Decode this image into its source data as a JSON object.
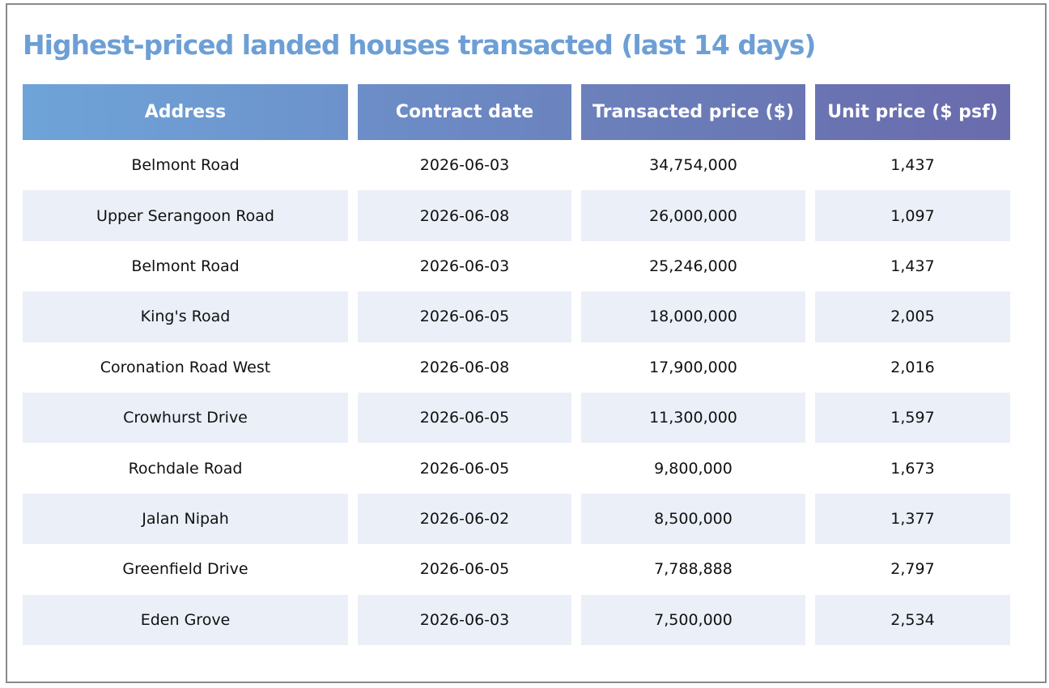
{
  "title": "Highest-priced landed houses transacted (last 14 days)",
  "table": {
    "headers": [
      "Address",
      "Contract date",
      "Transacted price ($)",
      "Unit price ($ psf)"
    ],
    "rows": [
      [
        "Belmont Road",
        "2026-06-03",
        "34,754,000",
        "1,437"
      ],
      [
        "Upper Serangoon Road",
        "2026-06-08",
        "26,000,000",
        "1,097"
      ],
      [
        "Belmont Road",
        "2026-06-03",
        "25,246,000",
        "1,437"
      ],
      [
        "King's Road",
        "2026-06-05",
        "18,000,000",
        "2,005"
      ],
      [
        "Coronation Road West",
        "2026-06-08",
        "17,900,000",
        "2,016"
      ],
      [
        "Crowhurst Drive",
        "2026-06-05",
        "11,300,000",
        "1,597"
      ],
      [
        "Rochdale Road",
        "2026-06-05",
        "9,800,000",
        "1,673"
      ],
      [
        "Jalan Nipah",
        "2026-06-02",
        "8,500,000",
        "1,377"
      ],
      [
        "Greenfield Drive",
        "2026-06-05",
        "7,788,888",
        "2,797"
      ],
      [
        "Eden Grove",
        "2026-06-03",
        "7,500,000",
        "2,534"
      ]
    ]
  }
}
